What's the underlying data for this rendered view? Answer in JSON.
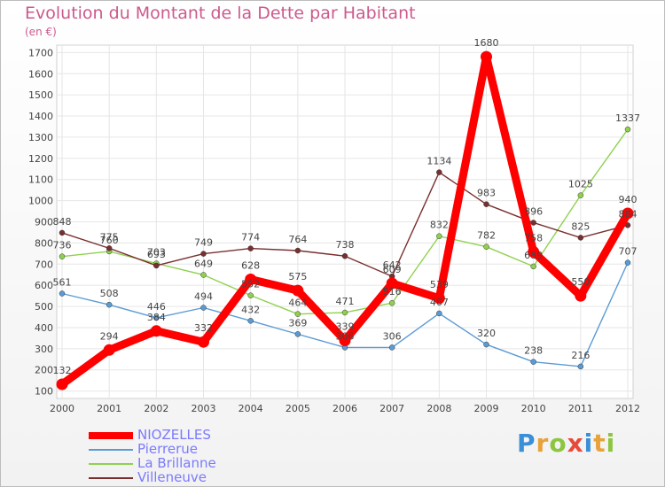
{
  "title": "Evolution du Montant de la Dette par Habitant",
  "subtitle": "(en €)",
  "logo": {
    "letters": [
      "P",
      "r",
      "o",
      "x",
      "i",
      "t",
      "i"
    ],
    "colors": [
      "#3b8fd6",
      "#e8a23a",
      "#8cc63f",
      "#e84a3a",
      "#3b8fd6",
      "#e8a23a",
      "#8cc63f"
    ]
  },
  "chart_data": {
    "type": "line",
    "title": "Evolution du Montant de la Dette par Habitant",
    "ylabel": "(en €)",
    "x": [
      "2000",
      "2001",
      "2002",
      "2003",
      "2004",
      "2005",
      "2006",
      "2007",
      "2008",
      "2009",
      "2010",
      "2011",
      "2012"
    ],
    "ylim": [
      100,
      1700
    ],
    "yticks": [
      100,
      200,
      300,
      400,
      500,
      600,
      700,
      800,
      900,
      1000,
      1100,
      1200,
      1300,
      1400,
      1500,
      1600,
      1700
    ],
    "grid": true,
    "legend_position": "bottom-left",
    "series": [
      {
        "name": "NIOZELLES",
        "color": "#ff0000",
        "values": [
          132,
          294,
          384,
          332,
          628,
          575,
          339,
          609,
          539,
          1680,
          758,
          550,
          940
        ],
        "labels": [
          "132",
          "294",
          "384",
          "332",
          "628",
          "575",
          "339",
          "609",
          "539",
          "1680",
          "758",
          "550",
          "940"
        ]
      },
      {
        "name": "Pierrerue",
        "color": "#5b9bd5",
        "values": [
          561,
          508,
          446,
          494,
          432,
          369,
          306,
          306,
          467,
          320,
          238,
          216,
          707
        ],
        "labels": [
          "561",
          "508",
          "446",
          "494",
          "432",
          "369",
          "306",
          "306",
          "467",
          "320",
          "238",
          "216",
          "707"
        ]
      },
      {
        "name": "La Brillanne",
        "color": "#8fd14f",
        "values": [
          736,
          760,
          703,
          649,
          552,
          464,
          471,
          516,
          832,
          782,
          689,
          1025,
          1337
        ],
        "labels": [
          "736",
          "760",
          "703",
          "649",
          "552",
          "464",
          "471",
          "516",
          "832",
          "782",
          "689",
          "1025",
          "1337"
        ]
      },
      {
        "name": "Villeneuve",
        "color": "#7a2f2f",
        "values": [
          848,
          775,
          693,
          749,
          774,
          764,
          738,
          642,
          1134,
          983,
          896,
          825,
          884
        ],
        "labels": [
          "848",
          "775",
          "693",
          "749",
          "774",
          "764",
          "738",
          "642",
          "1134",
          "983",
          "896",
          "825",
          "884"
        ]
      }
    ]
  }
}
